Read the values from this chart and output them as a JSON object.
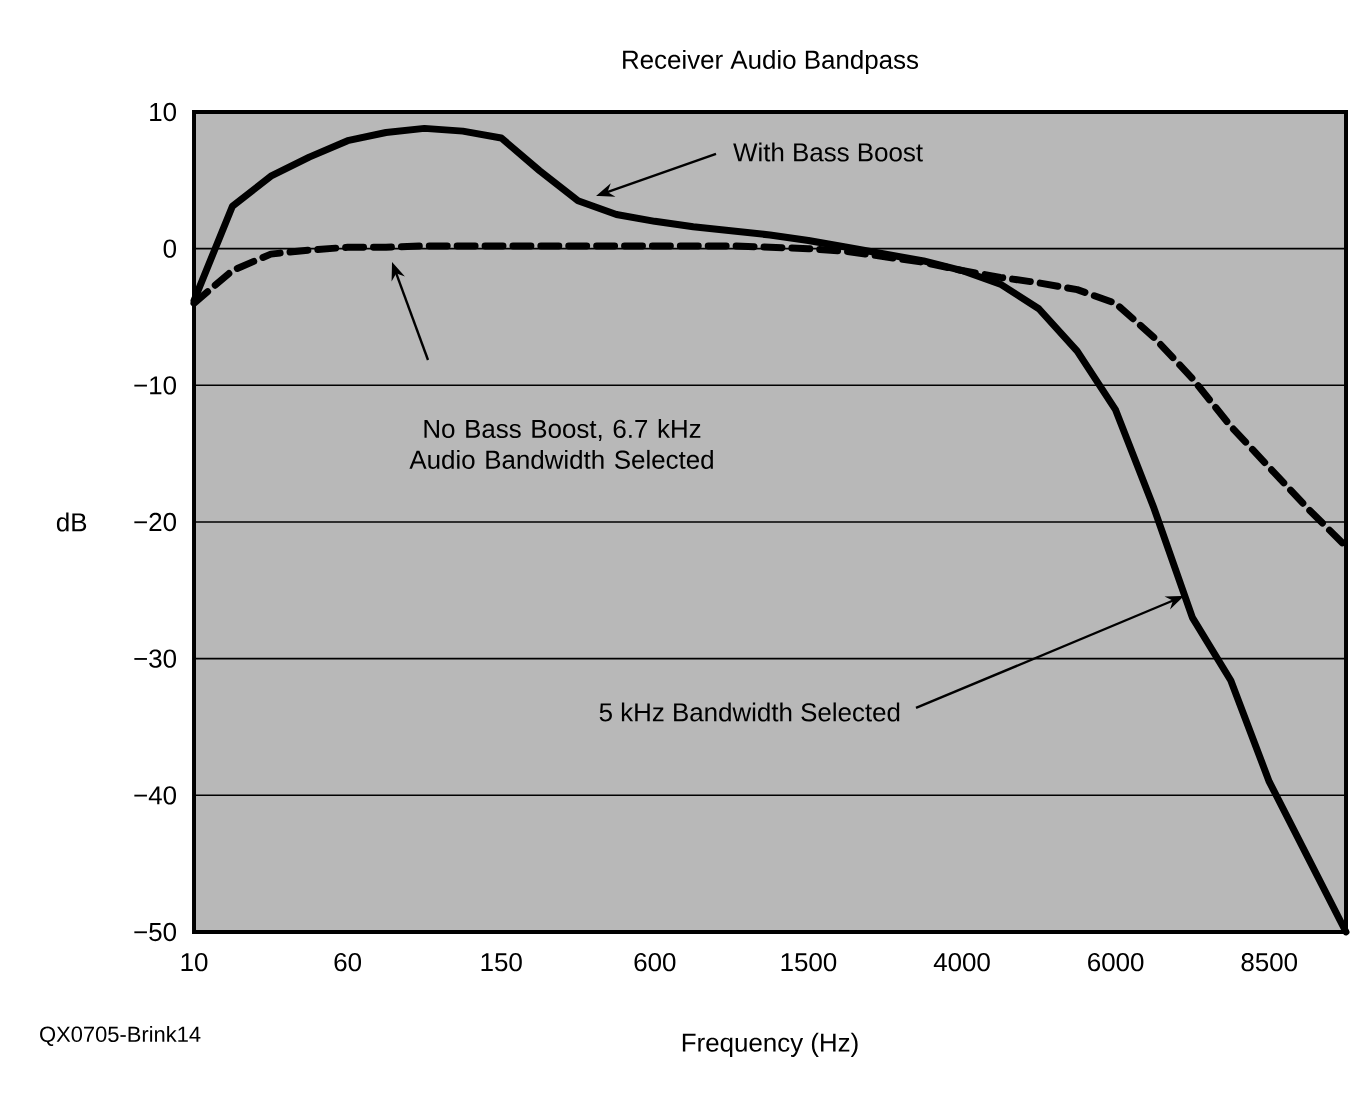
{
  "chart_data": {
    "type": "line",
    "title": "Receiver Audio Bandpass",
    "xlabel": "Frequency (Hz)",
    "ylabel": "dB",
    "categories": [
      "10",
      null,
      null,
      null,
      "60",
      null,
      null,
      null,
      "150",
      null,
      null,
      null,
      "600",
      null,
      null,
      null,
      "1500",
      null,
      null,
      null,
      "4000",
      null,
      null,
      null,
      "6000",
      null,
      null,
      null,
      "8500",
      null,
      null
    ],
    "series": [
      {
        "color": "#000000",
        "line_style": "solid",
        "values": [
          -3.8,
          3.1,
          5.3,
          6.7,
          7.9,
          8.5,
          8.8,
          8.6,
          8.1,
          5.7,
          3.5,
          2.5,
          2.0,
          1.6,
          1.3,
          1.0,
          0.6,
          0.1,
          -0.4,
          -0.9,
          -1.6,
          -2.6,
          -4.4,
          -7.5,
          -11.8,
          -19,
          -27,
          -31.6,
          -39,
          -44.5,
          -50
        ]
      },
      {
        "color": "#000000",
        "line_style": "dashed",
        "values": [
          -4,
          -1.6,
          -0.4,
          -0.1,
          0.1,
          0.1,
          0.2,
          0.2,
          0.2,
          0.2,
          0.2,
          0.2,
          0.2,
          0.2,
          0.2,
          0.1,
          0.0,
          -0.2,
          -0.6,
          -1.0,
          -1.6,
          -2.1,
          -2.5,
          -3.0,
          -4.0,
          -6.5,
          -9.5,
          -13,
          -16,
          -19,
          -21.8
        ]
      }
    ],
    "ylim": [
      -50,
      10
    ],
    "yticks": [
      {
        "value": -50,
        "label": "−50"
      },
      {
        "value": -40,
        "label": "−40"
      },
      {
        "value": -30,
        "label": "−30"
      },
      {
        "value": -20,
        "label": "−20"
      },
      {
        "value": -10,
        "label": "−10"
      },
      0,
      10
    ],
    "grid": "y",
    "marker": "none",
    "annotations": [
      "With Bass Boost",
      "No Bass Boost, 6.7 kHz Audio Bandwidth Selected",
      "5 kHz Bandwidth Selected",
      "QX0705-Brink14"
    ]
  }
}
